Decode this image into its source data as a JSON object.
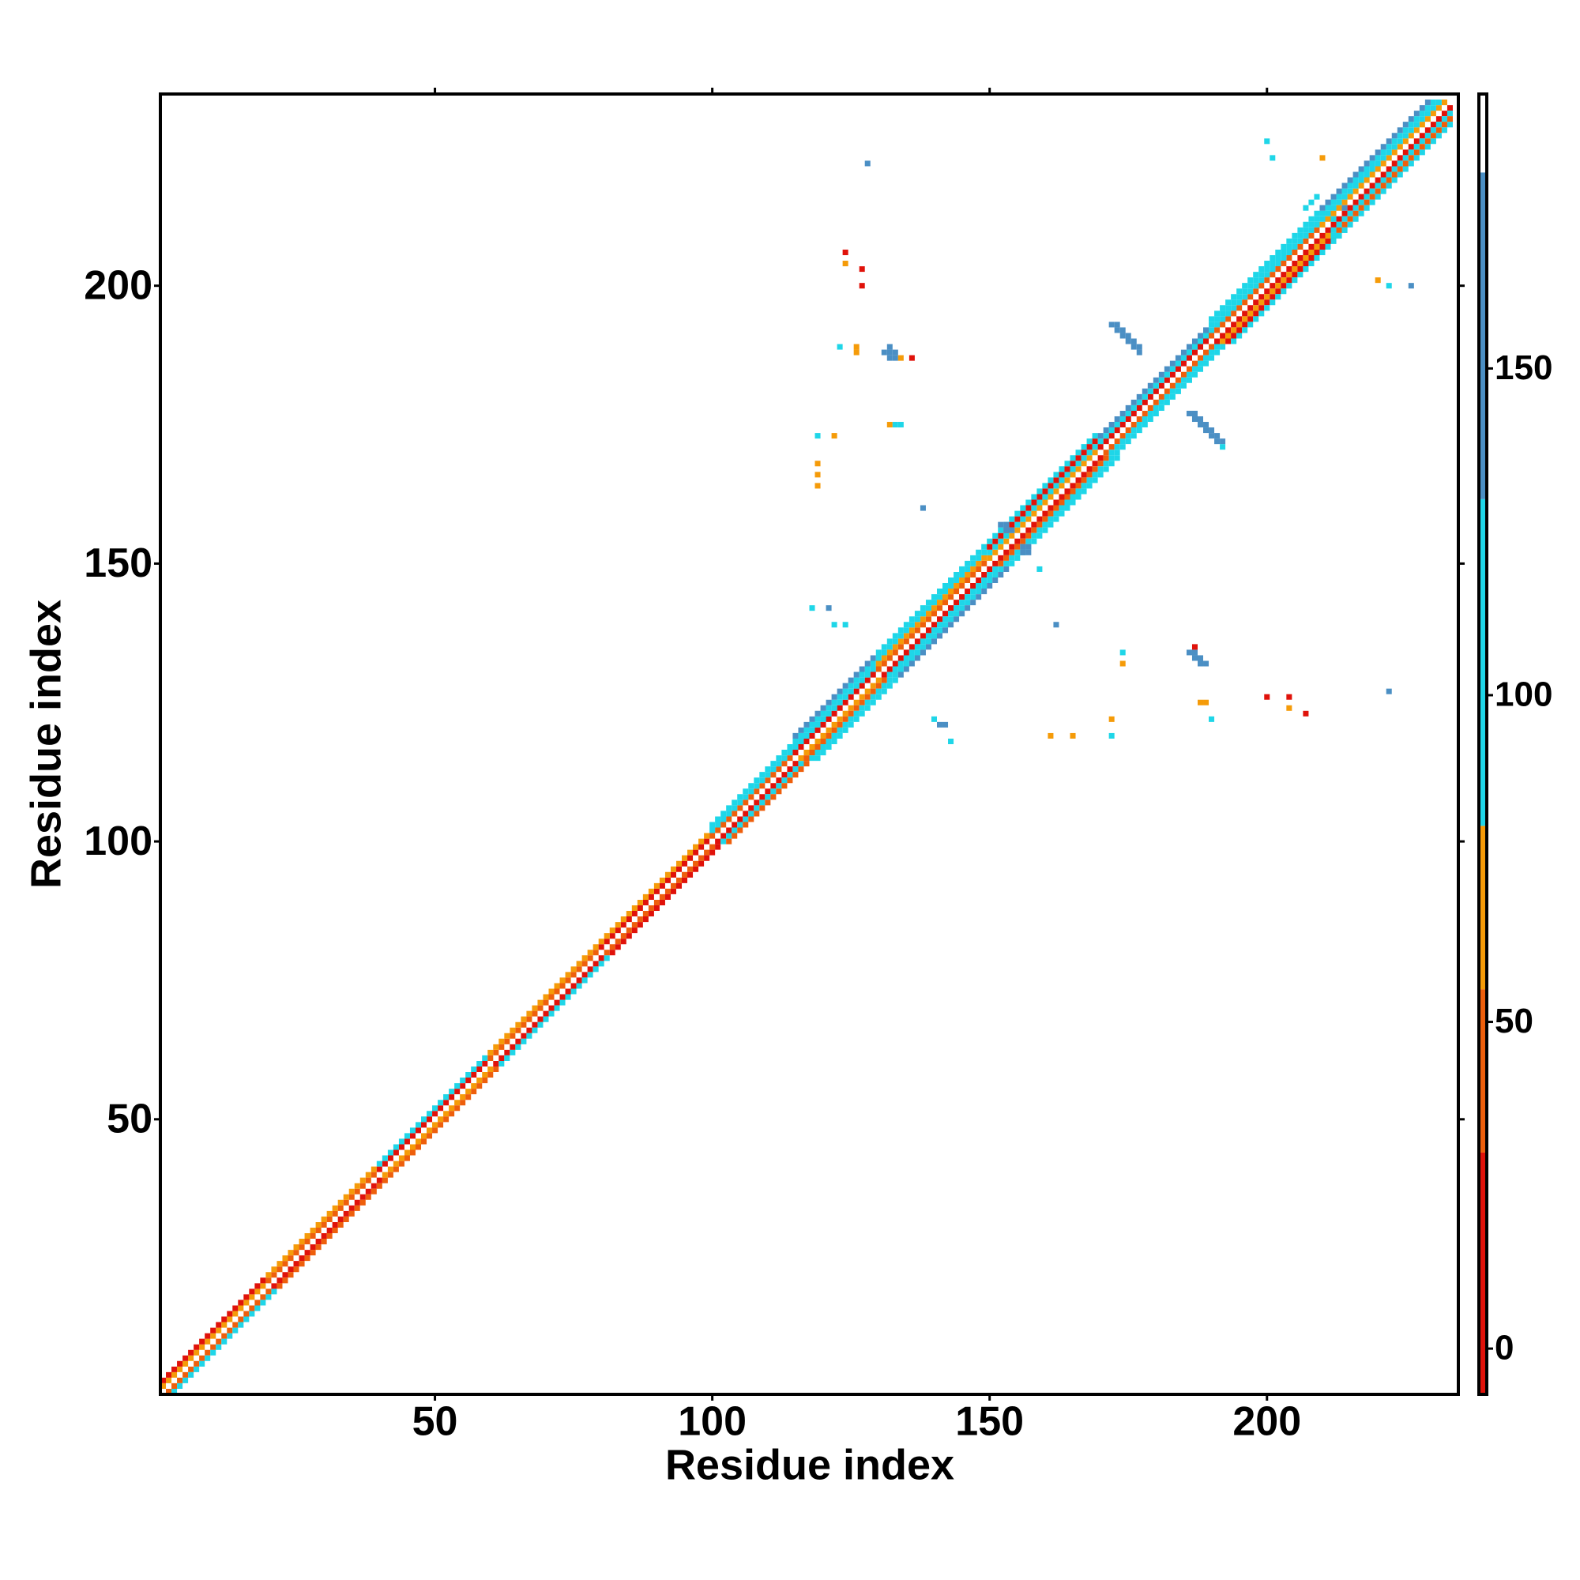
{
  "chart_data": {
    "type": "heatmap",
    "x_label": "Residue index",
    "y_label": "Residue index",
    "xlim": [
      0.5,
      234.5
    ],
    "ylim": [
      0.5,
      234.5
    ],
    "xticks": [
      50,
      100,
      150,
      200
    ],
    "yticks": [
      50,
      100,
      150,
      200
    ],
    "colorbar": {
      "bins": [
        -7,
        30,
        55,
        80,
        130,
        180,
        192
      ],
      "colors": [
        "#e0120a",
        "#ee5f0c",
        "#f59b09",
        "#1fd6e8",
        "#4b8fc4",
        "#ffffff"
      ],
      "ticks": [
        0,
        50,
        100,
        150
      ]
    },
    "runs": {
      "x": [
        1,
        2,
        1,
        3,
        20,
        21,
        20,
        22,
        40,
        41,
        40,
        42,
        60,
        61,
        60,
        62,
        80,
        81,
        80,
        82,
        100,
        101,
        100,
        102,
        100,
        103,
        115,
        116,
        115,
        117,
        115,
        118,
        115,
        119,
        130,
        131,
        130,
        132,
        130,
        133,
        130,
        134,
        150,
        151,
        150,
        152,
        150,
        153,
        150,
        154,
        170,
        171,
        170,
        172,
        170,
        173,
        190,
        191,
        190,
        192,
        190,
        193,
        190,
        194,
        210,
        211,
        210,
        212,
        210,
        213,
        210,
        214
      ],
      "y": [
        2,
        1,
        3,
        1,
        21,
        20,
        22,
        20,
        41,
        40,
        42,
        40,
        61,
        60,
        62,
        60,
        81,
        80,
        82,
        80,
        101,
        100,
        102,
        100,
        103,
        100,
        116,
        115,
        117,
        115,
        118,
        115,
        119,
        115,
        131,
        130,
        132,
        130,
        133,
        130,
        134,
        130,
        151,
        150,
        152,
        150,
        153,
        150,
        154,
        150,
        171,
        170,
        172,
        170,
        173,
        170,
        191,
        190,
        192,
        190,
        193,
        190,
        194,
        190,
        211,
        210,
        212,
        210,
        213,
        210,
        214,
        210
      ],
      "length": [
        19,
        19,
        19,
        19,
        20,
        20,
        20,
        20,
        20,
        20,
        20,
        20,
        20,
        20,
        20,
        20,
        20,
        20,
        20,
        20,
        15,
        15,
        15,
        15,
        15,
        15,
        15,
        15,
        15,
        15,
        15,
        15,
        15,
        15,
        20,
        20,
        20,
        20,
        20,
        20,
        20,
        20,
        20,
        20,
        20,
        20,
        20,
        20,
        20,
        20,
        20,
        20,
        20,
        20,
        20,
        20,
        20,
        20,
        20,
        20,
        20,
        20,
        20,
        20,
        23,
        23,
        22,
        22,
        21,
        21,
        20,
        20
      ],
      "values": [
        60,
        40,
        10,
        100,
        40,
        10,
        65,
        45,
        10,
        65,
        100,
        40,
        45,
        10,
        65,
        100,
        10,
        45,
        65,
        10,
        45,
        10,
        100,
        100,
        110,
        45,
        10,
        65,
        100,
        45,
        110,
        100,
        140,
        110,
        45,
        10,
        65,
        100,
        110,
        110,
        100,
        140,
        65,
        10,
        100,
        45,
        10,
        110,
        110,
        100,
        10,
        45,
        110,
        100,
        140,
        110,
        45,
        10,
        100,
        65,
        110,
        10,
        110,
        100,
        65,
        10,
        100,
        100,
        110,
        45,
        140,
        110
      ]
    },
    "cells": {
      "x": [
        172,
        173,
        174,
        175,
        176,
        177,
        173,
        174,
        175,
        176,
        177,
        186,
        187,
        188,
        189,
        190,
        191,
        187,
        188,
        189,
        190,
        191,
        192,
        192,
        131,
        132,
        133,
        132,
        133,
        132,
        134,
        136,
        186,
        187,
        187,
        188,
        188,
        189,
        187,
        152,
        153,
        153,
        154,
        156,
        157,
        157,
        156,
        159,
        207,
        208,
        209,
        212,
        213,
        214,
        212,
        213,
        214,
        124,
        124,
        127,
        127,
        128,
        200,
        201,
        210,
        220,
        222,
        226,
        119,
        122,
        119,
        119,
        119,
        118,
        121,
        122,
        124,
        132,
        133,
        134,
        123,
        126,
        126,
        138,
        142,
        141,
        140,
        143,
        161,
        165,
        172,
        172,
        174,
        174,
        188,
        189,
        190,
        200,
        204,
        204,
        207,
        222,
        162
      ],
      "y": [
        193,
        192,
        191,
        190,
        189,
        188,
        193,
        192,
        191,
        190,
        189,
        177,
        176,
        175,
        174,
        173,
        172,
        177,
        176,
        175,
        174,
        173,
        172,
        171,
        188,
        188,
        188,
        187,
        187,
        189,
        187,
        187,
        134,
        134,
        133,
        133,
        132,
        132,
        135,
        157,
        157,
        156,
        156,
        153,
        153,
        152,
        152,
        149,
        214,
        215,
        216,
        212,
        211,
        210,
        209,
        209,
        214,
        206,
        204,
        203,
        200,
        222,
        226,
        223,
        223,
        201,
        200,
        200,
        173,
        173,
        168,
        166,
        164,
        142,
        142,
        139,
        139,
        175,
        175,
        175,
        189,
        189,
        188,
        160,
        121,
        121,
        122,
        118,
        119,
        119,
        119,
        122,
        132,
        134,
        125,
        125,
        122,
        126,
        126,
        124,
        123,
        127,
        139
      ],
      "values": [
        140,
        140,
        140,
        140,
        140,
        140,
        140,
        140,
        140,
        140,
        140,
        140,
        140,
        140,
        140,
        140,
        140,
        140,
        140,
        140,
        140,
        140,
        140,
        110,
        140,
        140,
        140,
        140,
        140,
        140,
        65,
        10,
        140,
        140,
        140,
        140,
        140,
        140,
        10,
        140,
        140,
        140,
        140,
        140,
        140,
        140,
        140,
        100,
        110,
        110,
        110,
        110,
        110,
        110,
        110,
        110,
        140,
        10,
        65,
        10,
        10,
        140,
        100,
        100,
        65,
        65,
        100,
        140,
        100,
        65,
        65,
        65,
        65,
        100,
        140,
        100,
        100,
        65,
        100,
        100,
        100,
        65,
        65,
        140,
        140,
        140,
        100,
        100,
        65,
        65,
        100,
        65,
        65,
        100,
        65,
        65,
        100,
        10,
        10,
        65,
        10,
        140,
        140
      ]
    }
  }
}
